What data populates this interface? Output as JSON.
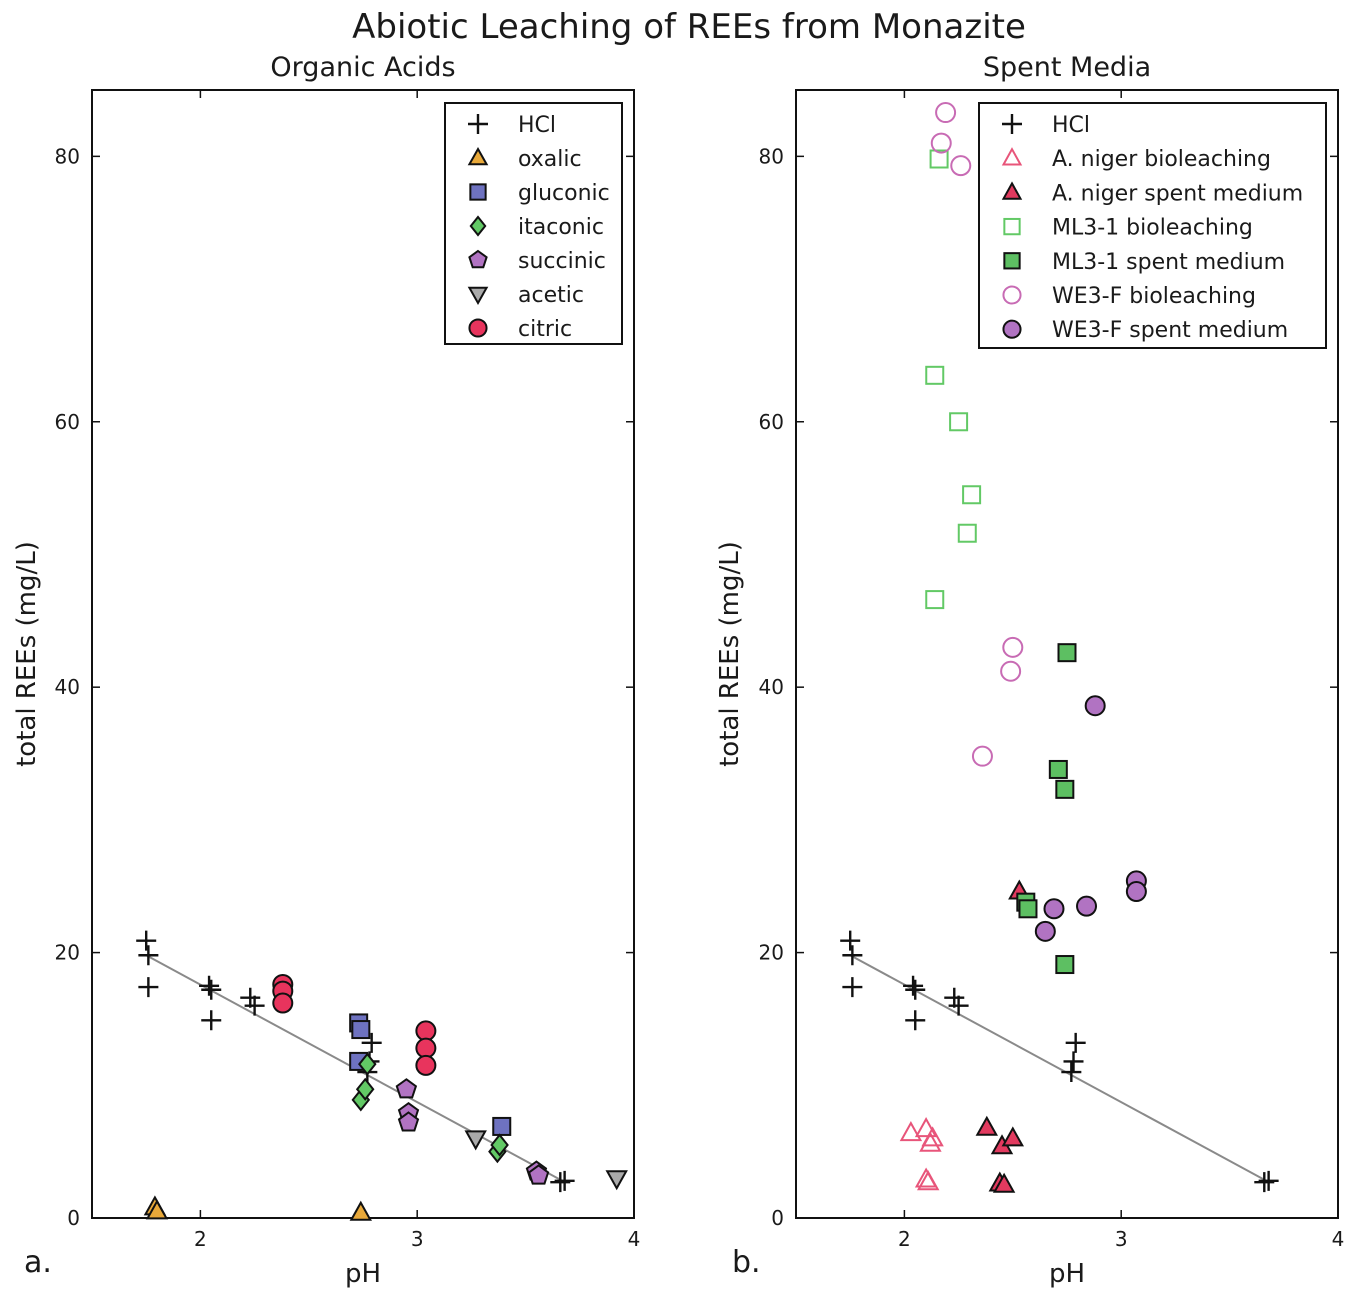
{
  "figure": {
    "title": "Abiotic Leaching of REEs from Monazite"
  },
  "chart_data": [
    {
      "type": "scatter",
      "panel_label": "a.",
      "title": "Organic Acids",
      "xlabel": "pH",
      "ylabel": "total REEs (mg/L)",
      "xlim": [
        1.5,
        4
      ],
      "ylim": [
        0,
        85
      ],
      "xticks": [
        2,
        3,
        4
      ],
      "yticks": [
        0,
        20,
        40,
        60,
        80
      ],
      "grid": false,
      "legend_position": "top-right",
      "fit_line": {
        "x": [
          1.75,
          3.67
        ],
        "y": [
          19.8,
          2.8
        ]
      },
      "series": [
        {
          "name": "HCl",
          "marker": "plus",
          "fill": "#111111",
          "stroke": "#111111",
          "x": [
            1.75,
            1.76,
            1.76,
            2.04,
            2.05,
            2.05,
            2.23,
            2.25,
            2.77,
            2.78,
            2.79,
            3.66,
            3.68
          ],
          "y": [
            20.9,
            19.8,
            17.4,
            17.5,
            17.2,
            14.9,
            16.6,
            16.0,
            11.0,
            11.8,
            13.2,
            2.7,
            2.8
          ]
        },
        {
          "name": "oxalic",
          "marker": "triangle",
          "fill": "#e9a93a",
          "stroke": "#111111",
          "x": [
            1.79,
            1.8,
            2.74
          ],
          "y": [
            0.8,
            0.5,
            0.4
          ]
        },
        {
          "name": "gluconic",
          "marker": "square",
          "fill": "#6e72c0",
          "stroke": "#111111",
          "x": [
            2.73,
            2.74,
            2.73,
            3.39
          ],
          "y": [
            14.7,
            14.2,
            11.8,
            6.9
          ]
        },
        {
          "name": "itaconic",
          "marker": "diamond",
          "fill": "#62c965",
          "stroke": "#111111",
          "x": [
            2.74,
            2.76,
            2.77,
            3.37,
            3.38
          ],
          "y": [
            8.9,
            9.7,
            11.6,
            5.0,
            5.5
          ]
        },
        {
          "name": "succinic",
          "marker": "pentagon",
          "fill": "#b173c2",
          "stroke": "#111111",
          "x": [
            2.95,
            2.96,
            2.96,
            3.55,
            3.56
          ],
          "y": [
            9.7,
            7.9,
            7.2,
            3.5,
            3.2
          ]
        },
        {
          "name": "acetic",
          "marker": "triangle-down",
          "fill": "#aaaaaa",
          "stroke": "#111111",
          "x": [
            3.27,
            3.92
          ],
          "y": [
            6.0,
            3.0
          ]
        },
        {
          "name": "citric",
          "marker": "circle",
          "fill": "#e8345d",
          "stroke": "#111111",
          "x": [
            2.38,
            2.38,
            2.38,
            3.04,
            3.04,
            3.04
          ],
          "y": [
            17.6,
            17.1,
            16.2,
            14.1,
            12.8,
            11.5
          ]
        }
      ]
    },
    {
      "type": "scatter",
      "panel_label": "b.",
      "title": "Spent Media",
      "xlabel": "pH",
      "ylabel": "total REEs (mg/L)",
      "xlim": [
        1.5,
        4
      ],
      "ylim": [
        0,
        85
      ],
      "xticks": [
        2,
        3,
        4
      ],
      "yticks": [
        0,
        20,
        40,
        60,
        80
      ],
      "grid": false,
      "legend_position": "top-right",
      "fit_line": {
        "x": [
          1.75,
          3.67
        ],
        "y": [
          19.8,
          2.8
        ]
      },
      "series": [
        {
          "name": "HCl",
          "marker": "plus",
          "fill": "#111111",
          "stroke": "#111111",
          "x": [
            1.75,
            1.76,
            1.76,
            2.04,
            2.05,
            2.05,
            2.23,
            2.25,
            2.77,
            2.78,
            2.79,
            3.66,
            3.68
          ],
          "y": [
            20.9,
            19.8,
            17.4,
            17.5,
            17.2,
            14.9,
            16.6,
            16.0,
            11.0,
            11.8,
            13.2,
            2.7,
            2.8
          ]
        },
        {
          "name": "A. niger bioleaching",
          "marker": "triangle-open",
          "fill": "none",
          "stroke": "#e8557a",
          "x": [
            2.03,
            2.1,
            2.12,
            2.13,
            2.1,
            2.11
          ],
          "y": [
            6.4,
            6.7,
            5.6,
            6.0,
            2.9,
            2.7
          ]
        },
        {
          "name": "A. niger spent medium",
          "marker": "triangle",
          "fill": "#e23a5f",
          "stroke": "#111111",
          "x": [
            2.38,
            2.45,
            2.5,
            2.44,
            2.46,
            2.53
          ],
          "y": [
            6.8,
            5.4,
            6.0,
            2.6,
            2.5,
            24.6
          ]
        },
        {
          "name": "ML3-1 bioleaching",
          "marker": "square-open",
          "fill": "none",
          "stroke": "#62c965",
          "x": [
            2.16,
            2.14,
            2.25,
            2.31,
            2.29,
            2.14
          ],
          "y": [
            79.8,
            63.5,
            60.0,
            54.5,
            51.6,
            46.6
          ]
        },
        {
          "name": "ML3-1 spent medium",
          "marker": "square",
          "fill": "#5dbf62",
          "stroke": "#111111",
          "x": [
            2.75,
            2.71,
            2.74,
            2.56,
            2.57,
            2.74
          ],
          "y": [
            42.6,
            33.8,
            32.3,
            23.8,
            23.3,
            19.1
          ]
        },
        {
          "name": "WE3-F bioleaching",
          "marker": "circle-open",
          "fill": "none",
          "stroke": "#c86bb4",
          "x": [
            2.19,
            2.17,
            2.26,
            2.5,
            2.49,
            2.36
          ],
          "y": [
            83.3,
            81.0,
            79.3,
            43.0,
            41.2,
            34.8
          ]
        },
        {
          "name": "WE3-F spent medium",
          "marker": "circle",
          "fill": "#b173c2",
          "stroke": "#111111",
          "x": [
            2.88,
            3.07,
            3.07,
            2.84,
            2.69,
            2.65
          ],
          "y": [
            38.6,
            25.4,
            24.6,
            23.5,
            23.3,
            21.6
          ]
        }
      ]
    }
  ]
}
